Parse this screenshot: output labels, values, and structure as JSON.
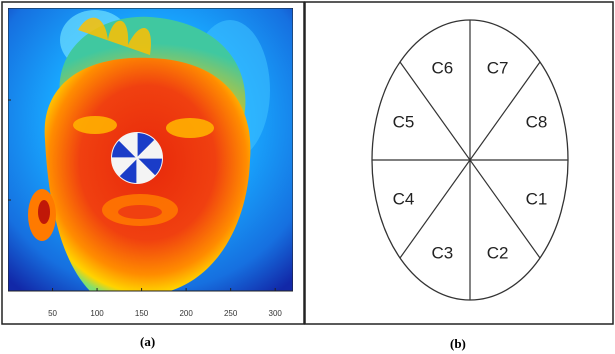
{
  "panel_a": {
    "caption": "(a)",
    "x_ticks": [
      "50",
      "100",
      "150",
      "200",
      "250",
      "300"
    ]
  },
  "panel_b": {
    "caption": "(b)",
    "sectors": [
      "C1",
      "C2",
      "C3",
      "C4",
      "C5",
      "C6",
      "C7",
      "C8"
    ]
  },
  "colors": {
    "hot": "#e8280a",
    "warm": "#ff8c00",
    "cool": "#18a8ff",
    "cold": "#1228a8",
    "marker_blue": "#1a3cc8",
    "marker_white": "#f4f4f4"
  }
}
